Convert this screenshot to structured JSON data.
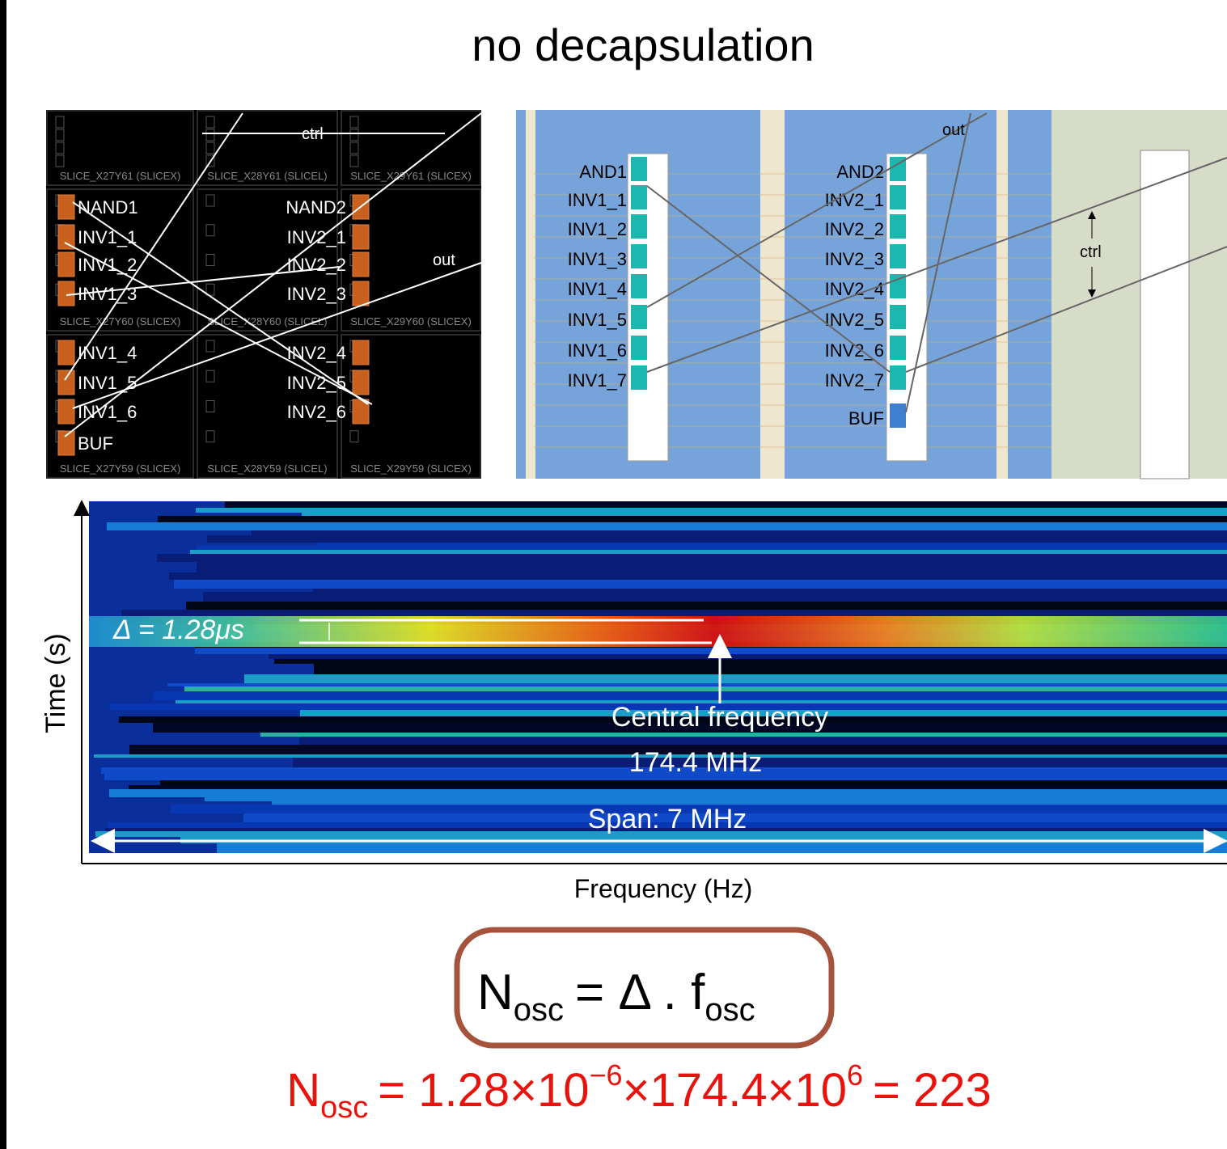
{
  "title": "no decapsulation",
  "left_panel": {
    "slice_labels": [
      "SLICE_X27Y61 (SLICEX)",
      "SLICE_X28Y61 (SLICEL)",
      "SLICE_X29Y61 (SLICEX)",
      "SLICE_X27Y60 (SLICEX)",
      "SLICE_X28Y60 (SLICEL)",
      "SLICE_X29Y60 (SLICEX)",
      "SLICE_X27Y59 (SLICEX)",
      "SLICE_X28Y59 (SLICEL)",
      "SLICE_X29Y59 (SLICEX)"
    ],
    "chain1": [
      "NAND1",
      "INV1_1",
      "INV1_2",
      "INV1_3",
      "INV1_4",
      "INV1_5",
      "INV1_6",
      "BUF"
    ],
    "chain2": [
      "NAND2",
      "INV2_1",
      "INV2_2",
      "INV2_3",
      "INV2_4",
      "INV2_5",
      "INV2_6"
    ],
    "ctrl": "ctrl",
    "out": "out"
  },
  "right_panel": {
    "chain1": [
      "AND1",
      "INV1_1",
      "INV1_2",
      "INV1_3",
      "INV1_4",
      "INV1_5",
      "INV1_6",
      "INV1_7"
    ],
    "chain2": [
      "AND2",
      "INV2_1",
      "INV2_2",
      "INV2_3",
      "INV2_4",
      "INV2_5",
      "INV2_6",
      "INV2_7",
      "BUF"
    ],
    "out": "out",
    "ctrl": "ctrl"
  },
  "spectrogram": {
    "y_label": "Time (s)",
    "x_label": "Frequency (Hz)",
    "delta": "Δ = 1.28μs",
    "central_label": "Central frequency",
    "central_value": "174.4 MHz",
    "span": "Span: 7 MHz"
  },
  "formula": {
    "lhs": "N",
    "lhs_sub": "osc",
    "rhs": "= Δ . f",
    "rhs_sub": "osc"
  },
  "result": {
    "n": "N",
    "n_sub": "osc",
    "a": "= 1.28×10",
    "a_sup": "−6",
    "b": "×174.4×10",
    "b_sup": "6",
    "c": "= 223"
  }
}
